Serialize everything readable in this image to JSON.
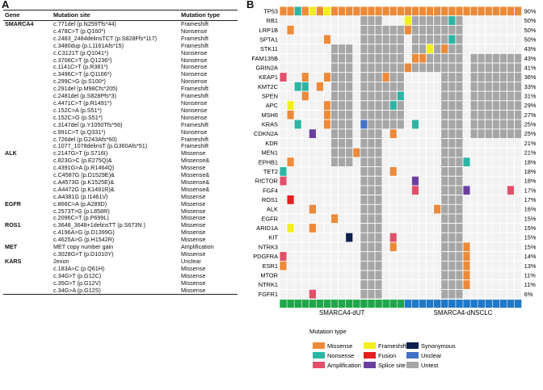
{
  "panelA": {
    "label": "A",
    "headers": {
      "gene": "Gene",
      "site": "Mutation site",
      "type": "Mutation type"
    },
    "rows": [
      {
        "gene": "SMARCA4",
        "site": "c.771del (p.N259Tfs*44)",
        "type": "Frameshift"
      },
      {
        "gene": "",
        "site": "c.478C>T (p.Q160*)",
        "type": "Nonsense"
      },
      {
        "gene": "",
        "site": "c.2483_2484delinsTCT (p.S828Ffs*117)",
        "type": "Frameshift"
      },
      {
        "gene": "",
        "site": "c.3480dup (p.L1161Afs*15)",
        "type": "Frameshift"
      },
      {
        "gene": "",
        "site": "c.C3121T (p.Q1041*)",
        "type": "Nonsense"
      },
      {
        "gene": "",
        "site": "c.3706C>T (p.Q1236*)",
        "type": "Nonsense"
      },
      {
        "gene": "",
        "site": "c.1141C>T (p.R381*)",
        "type": "Nonsense"
      },
      {
        "gene": "",
        "site": "c.3496C>T (p.Q1166*)",
        "type": "Nonsense"
      },
      {
        "gene": "",
        "site": "c.299C>G (p.S100*)",
        "type": "Nonsense"
      },
      {
        "gene": "",
        "site": "c.291del (p.M98Cfs*205)",
        "type": "Frameshift"
      },
      {
        "gene": "",
        "site": "c.2481del (p.S828Pfs*3)",
        "type": "Frameshift"
      },
      {
        "gene": "",
        "site": "c.4471C>T (p.R1491*)",
        "type": "Nonsense"
      },
      {
        "gene": "",
        "site": "c.152C>A (p.S51*)",
        "type": "Nonsense"
      },
      {
        "gene": "",
        "site": "c.152C>G (p.S51*)",
        "type": "Nonsense"
      },
      {
        "gene": "",
        "site": "c.3147del (p.Y1050Tfs*56)",
        "type": "Frameshift"
      },
      {
        "gene": "",
        "site": "c.991C>T (p.Q331*)",
        "type": "Nonsense"
      },
      {
        "gene": "",
        "site": "c.726del (p.G243Afs*60)",
        "type": "Frameshift"
      },
      {
        "gene": "",
        "site": "c.1077_1078delinsT (p.G360Afs*51)",
        "type": "Frameshift"
      },
      {
        "gene": "ALK",
        "site": "c.2147G>T (p.S716I)",
        "type": "Missense"
      },
      {
        "gene": "",
        "site": "c.823G>C (p.E275Q)&",
        "type": "Missense&"
      },
      {
        "gene": "",
        "site": "c.4391G>A (p.R1464Q)",
        "type": "Missense"
      },
      {
        "gene": "",
        "site": "c.C4587G (p.D1529E)&",
        "type": "Missense&"
      },
      {
        "gene": "",
        "site": "c.A4573G (p.K1525E)&",
        "type": "Missense&"
      },
      {
        "gene": "",
        "site": "c.A4472G (p.K1491R)&",
        "type": "Missense&"
      },
      {
        "gene": "",
        "site": "c.A4381G (p.I1461V)",
        "type": "Missense"
      },
      {
        "gene": "EGFR",
        "site": "c.866C>A (p.A289D)",
        "type": "Missense"
      },
      {
        "gene": "",
        "site": "c.2573T>G (p.L858R)",
        "type": "Missense"
      },
      {
        "gene": "",
        "site": "c.2096C>T (p.P699L)",
        "type": "Missense"
      },
      {
        "gene": "ROS1",
        "site": "c.3648_3648+1delinsTT (p.S673N )",
        "type": "Missense"
      },
      {
        "gene": "",
        "site": "c.4196A>G (p.D1399G)",
        "type": "Missense"
      },
      {
        "gene": "",
        "site": "c.4625A>G (p.H1542R)",
        "type": "Missense"
      },
      {
        "gene": "MET",
        "site": "MET copy number gain",
        "type": "Amplification"
      },
      {
        "gene": "",
        "site": "c.3028G>T (p.D1010Y)",
        "type": "Missense"
      },
      {
        "gene": "KARS",
        "site": "2exon",
        "type": "Unclear"
      },
      {
        "gene": "",
        "site": "c.183A>C (p.Q61H)",
        "type": "Missense"
      },
      {
        "gene": "",
        "site": "c.34G>T (p.G12C)",
        "type": "Missense"
      },
      {
        "gene": "",
        "site": "c.35G>T (p.G12V)",
        "type": "Missense"
      },
      {
        "gene": "",
        "site": "c.34G>A (p.G12S)",
        "type": "Missense"
      }
    ]
  },
  "panelB": {
    "label": "B",
    "genes": [
      "TP53",
      "RB1",
      "LRP1B",
      "SPTA1",
      "STK11",
      "FAM135B",
      "GRIN2A",
      "KEAP1",
      "KMT2C",
      "SPEN",
      "APC",
      "MSH6",
      "KRAS",
      "CDKN2A",
      "KDR",
      "MEN1",
      "EPHB1",
      "TET2",
      "RICTOR",
      "FGF4",
      "ROS1",
      "ALK",
      "EGFR",
      "ARID1A",
      "KIT",
      "NTRK3",
      "PDGFRA",
      "ESR1",
      "MTOR",
      "NTRK1",
      "FGFR1"
    ],
    "percents": [
      "90%",
      "50%",
      "50%",
      "50%",
      "43%",
      "43%",
      "41%",
      "36%",
      "33%",
      "31%",
      "29%",
      "27%",
      "25%",
      "25%",
      "21%",
      "21%",
      "18%",
      "18%",
      "18%",
      "17%",
      "17%",
      "16%",
      "15%",
      "15%",
      "15%",
      "15%",
      "14%",
      "13%",
      "11%",
      "11%",
      "6%"
    ],
    "group_labels": [
      "SMARCA4-dUT",
      "SMARCA4-dNSCLC"
    ],
    "colors": {
      "Missense": "#ec8a3a",
      "Nonsense": "#2db5a4",
      "Amplification": "#e0506a",
      "Frameshift": "#f3ee1e",
      "Fusion": "#e41f1f",
      "Splice site": "#6b3fa0",
      "Synonymous": "#0e1f4e",
      "Unclear": "#4472c4",
      "Untest": "#a6a6a6",
      "Wildtype": "#f2f2f2",
      "dUT": "#1fa64b",
      "dNSCLC": "#1f78c8"
    },
    "legend": {
      "title": "Mutation type",
      "items": [
        "Missense",
        "Frameshift",
        "Synonymous",
        "Nonsense",
        "Fusion",
        "Unclear",
        "Amplification",
        "Splice site",
        "Untest"
      ]
    }
  }
}
